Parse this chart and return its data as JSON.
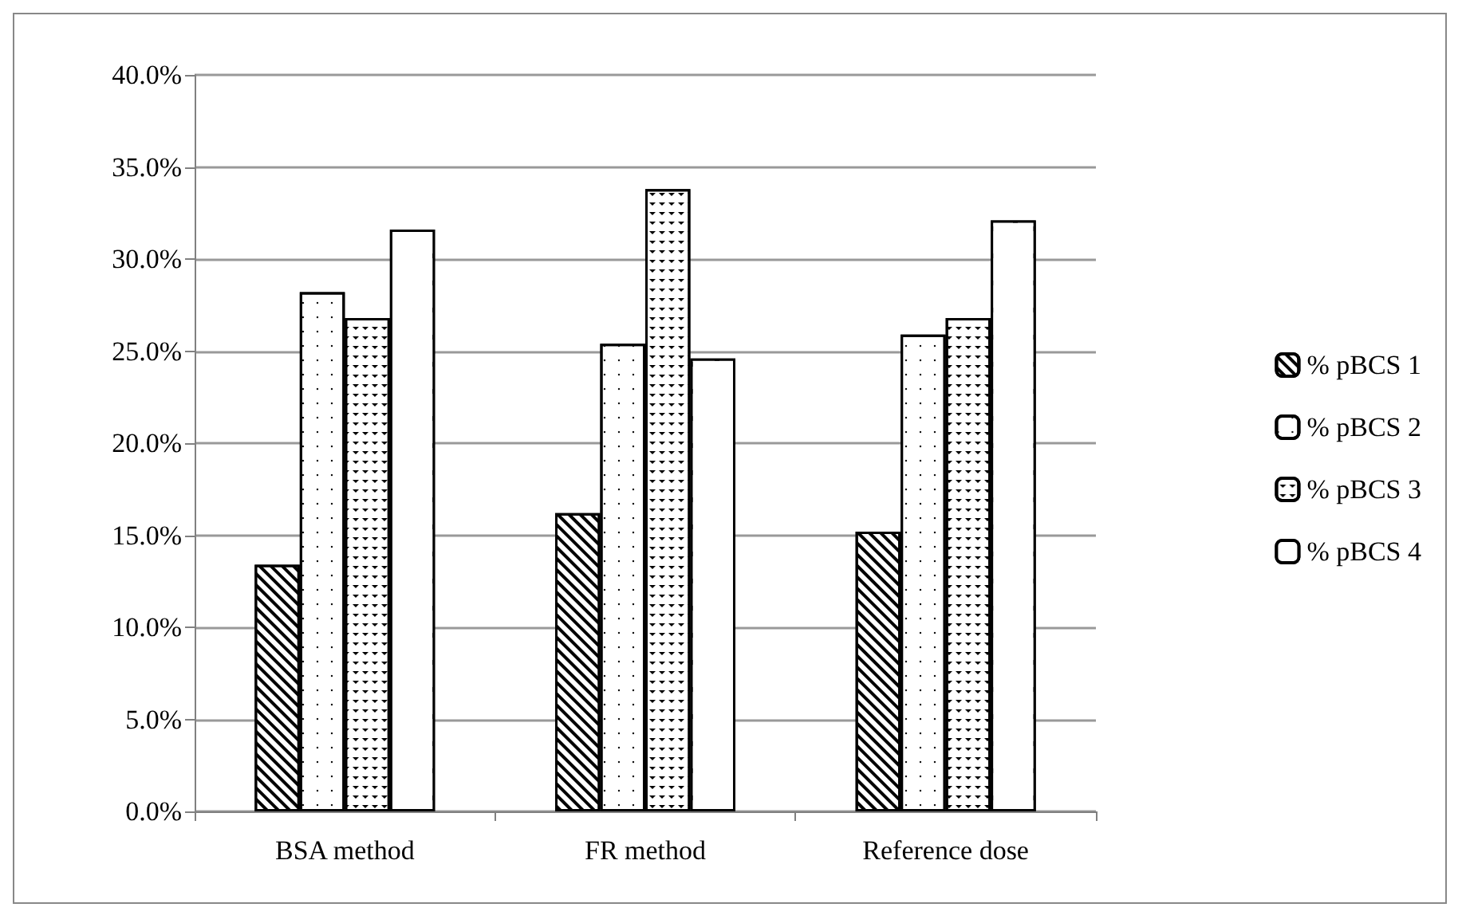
{
  "chart_data": {
    "type": "bar",
    "categories": [
      "BSA method",
      "FR method",
      "Reference dose"
    ],
    "series": [
      {
        "name": "% pBCS 1",
        "color": "#ffffff",
        "values": [
          13.4,
          16.2,
          15.2
        ]
      },
      {
        "name": "% pBCS 2",
        "color": "#ffffff",
        "values": [
          28.2,
          25.4,
          25.9
        ]
      },
      {
        "name": "% pBCS 3",
        "color": "#ffffff",
        "values": [
          26.8,
          33.8,
          26.8
        ]
      },
      {
        "name": "% pBCS 4",
        "color": "#ffffff",
        "values": [
          31.6,
          24.6,
          32.1
        ]
      }
    ],
    "ylim": [
      0,
      40
    ],
    "yticks": [
      {
        "value": 0,
        "label": "0.0%"
      },
      {
        "value": 5,
        "label": "5.0%"
      },
      {
        "value": 10,
        "label": "10.0%"
      },
      {
        "value": 15,
        "label": "15.0%"
      },
      {
        "value": 20,
        "label": "20.0%"
      },
      {
        "value": 25,
        "label": "25.0%"
      },
      {
        "value": 30,
        "label": "30.0%"
      },
      {
        "value": 35,
        "label": "35.0%"
      },
      {
        "value": 40,
        "label": "40.0%"
      }
    ],
    "grid": "y",
    "legend": "right"
  }
}
